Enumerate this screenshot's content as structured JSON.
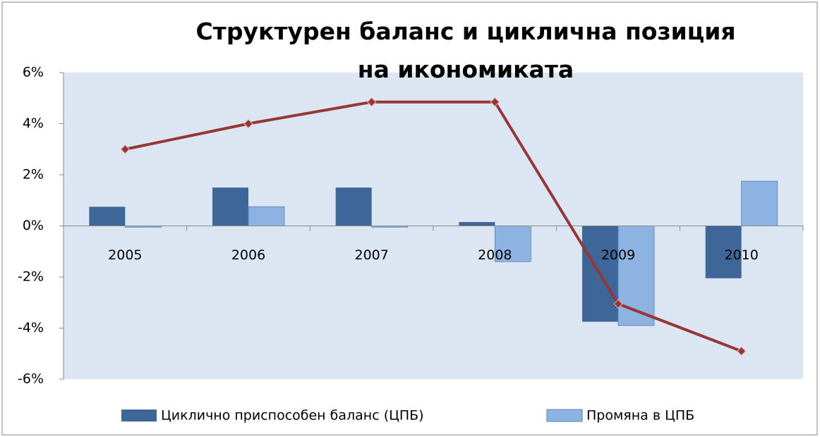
{
  "chart_data": {
    "type": "bar_line",
    "title": "Структурен баланс и циклична позиция на икономиката",
    "categories": [
      "2005",
      "2006",
      "2007",
      "2008",
      "2009",
      "2010"
    ],
    "series": [
      {
        "name": "Циклично приспособен баланс (ЦПБ)",
        "color": "#3f6698",
        "type": "bar",
        "values": [
          0.75,
          1.5,
          1.5,
          0.15,
          -3.75,
          -2.05
        ]
      },
      {
        "name": "Промяна в ЦПБ",
        "color": "#8db3e2",
        "type": "bar",
        "values": [
          -0.05,
          0.75,
          -0.05,
          -1.4,
          -3.9,
          1.75
        ]
      },
      {
        "color": "#953735",
        "type": "line",
        "values": [
          3.0,
          4.0,
          4.85,
          4.85,
          -3.05,
          -4.9
        ]
      }
    ],
    "ylim": [
      -6,
      6
    ],
    "yticks": [
      {
        "value": -6,
        "label": "-6%"
      },
      {
        "value": -4,
        "label": "-4%"
      },
      {
        "value": -2,
        "label": "-2%"
      },
      {
        "value": 0,
        "label": "0%"
      },
      {
        "value": 2,
        "label": "2%"
      },
      {
        "value": 4,
        "label": "4%"
      },
      {
        "value": 6,
        "label": "6%"
      }
    ],
    "legend": "bottom"
  }
}
